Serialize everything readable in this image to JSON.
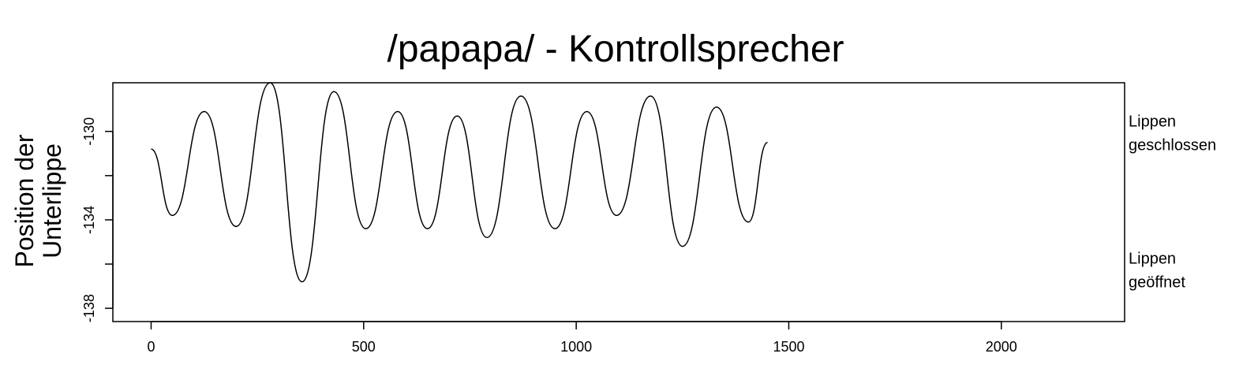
{
  "chart_data": {
    "type": "line",
    "title": "/papapa/ - Kontrollsprecher",
    "ylabel": [
      "Position der",
      "Unterlippe"
    ],
    "xlabel": "",
    "xlim": [
      -90,
      2290
    ],
    "ylim": [
      -138.6,
      -127.8
    ],
    "xticks": [
      0,
      500,
      1000,
      1500,
      2000
    ],
    "yticks": [
      -138,
      -134,
      -130
    ],
    "grid": false,
    "line_color": "#000000",
    "series": [
      {
        "x": [
          0,
          50,
          125,
          200,
          280,
          355,
          430,
          505,
          580,
          650,
          720,
          790,
          870,
          950,
          1025,
          1095,
          1175,
          1250,
          1330,
          1405,
          1450
        ],
        "y": [
          -130.8,
          -133.8,
          -129.1,
          -134.3,
          -127.8,
          -136.8,
          -128.2,
          -134.4,
          -129.1,
          -134.4,
          -129.3,
          -134.8,
          -128.4,
          -134.4,
          -129.1,
          -133.8,
          -128.4,
          -135.2,
          -128.9,
          -134.1,
          -130.5
        ]
      }
    ],
    "annotations": [
      {
        "lines": [
          "Lippen",
          "geschlossen"
        ],
        "y": -130
      },
      {
        "lines": [
          "Lippen",
          "geöffnet"
        ],
        "y": -136.2
      }
    ]
  }
}
